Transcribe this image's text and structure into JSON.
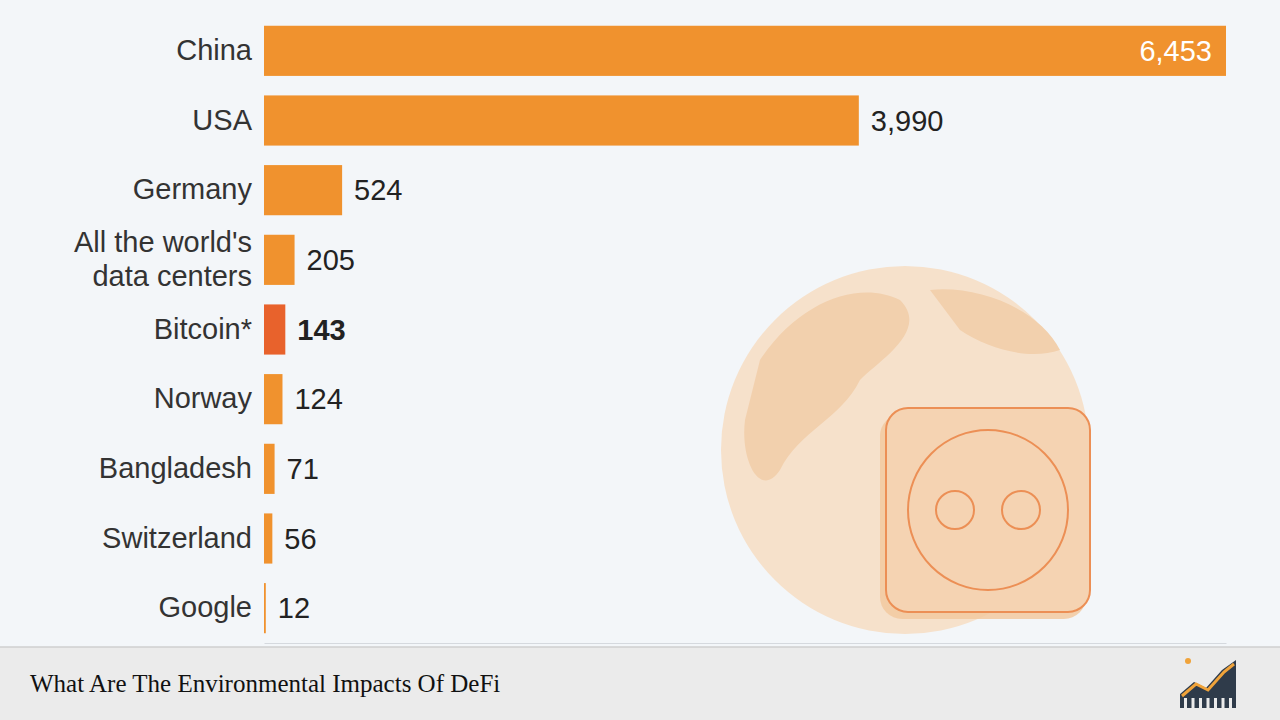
{
  "chart_data": {
    "type": "bar",
    "orientation": "horizontal",
    "title": "What Are The Environmental Impacts Of DeFi",
    "categories": [
      "China",
      "USA",
      "Germany",
      "All the world's data centers",
      "Bitcoin*",
      "Norway",
      "Bangladesh",
      "Switzerland",
      "Google"
    ],
    "values": [
      6453,
      3990,
      524,
      205,
      143,
      124,
      71,
      56,
      12
    ],
    "value_labels": [
      "6,453",
      "3,990",
      "524",
      "205",
      "143",
      "124",
      "71",
      "56",
      "12"
    ],
    "colors": [
      "#f0922e",
      "#f0922e",
      "#f0922e",
      "#f0922e",
      "#e8622c",
      "#f0922e",
      "#f0922e",
      "#f0922e",
      "#f0922e"
    ],
    "xlim": [
      0,
      6453
    ],
    "xticks": [],
    "grid": false,
    "data_labels": true,
    "tick_labels": "y"
  }
}
